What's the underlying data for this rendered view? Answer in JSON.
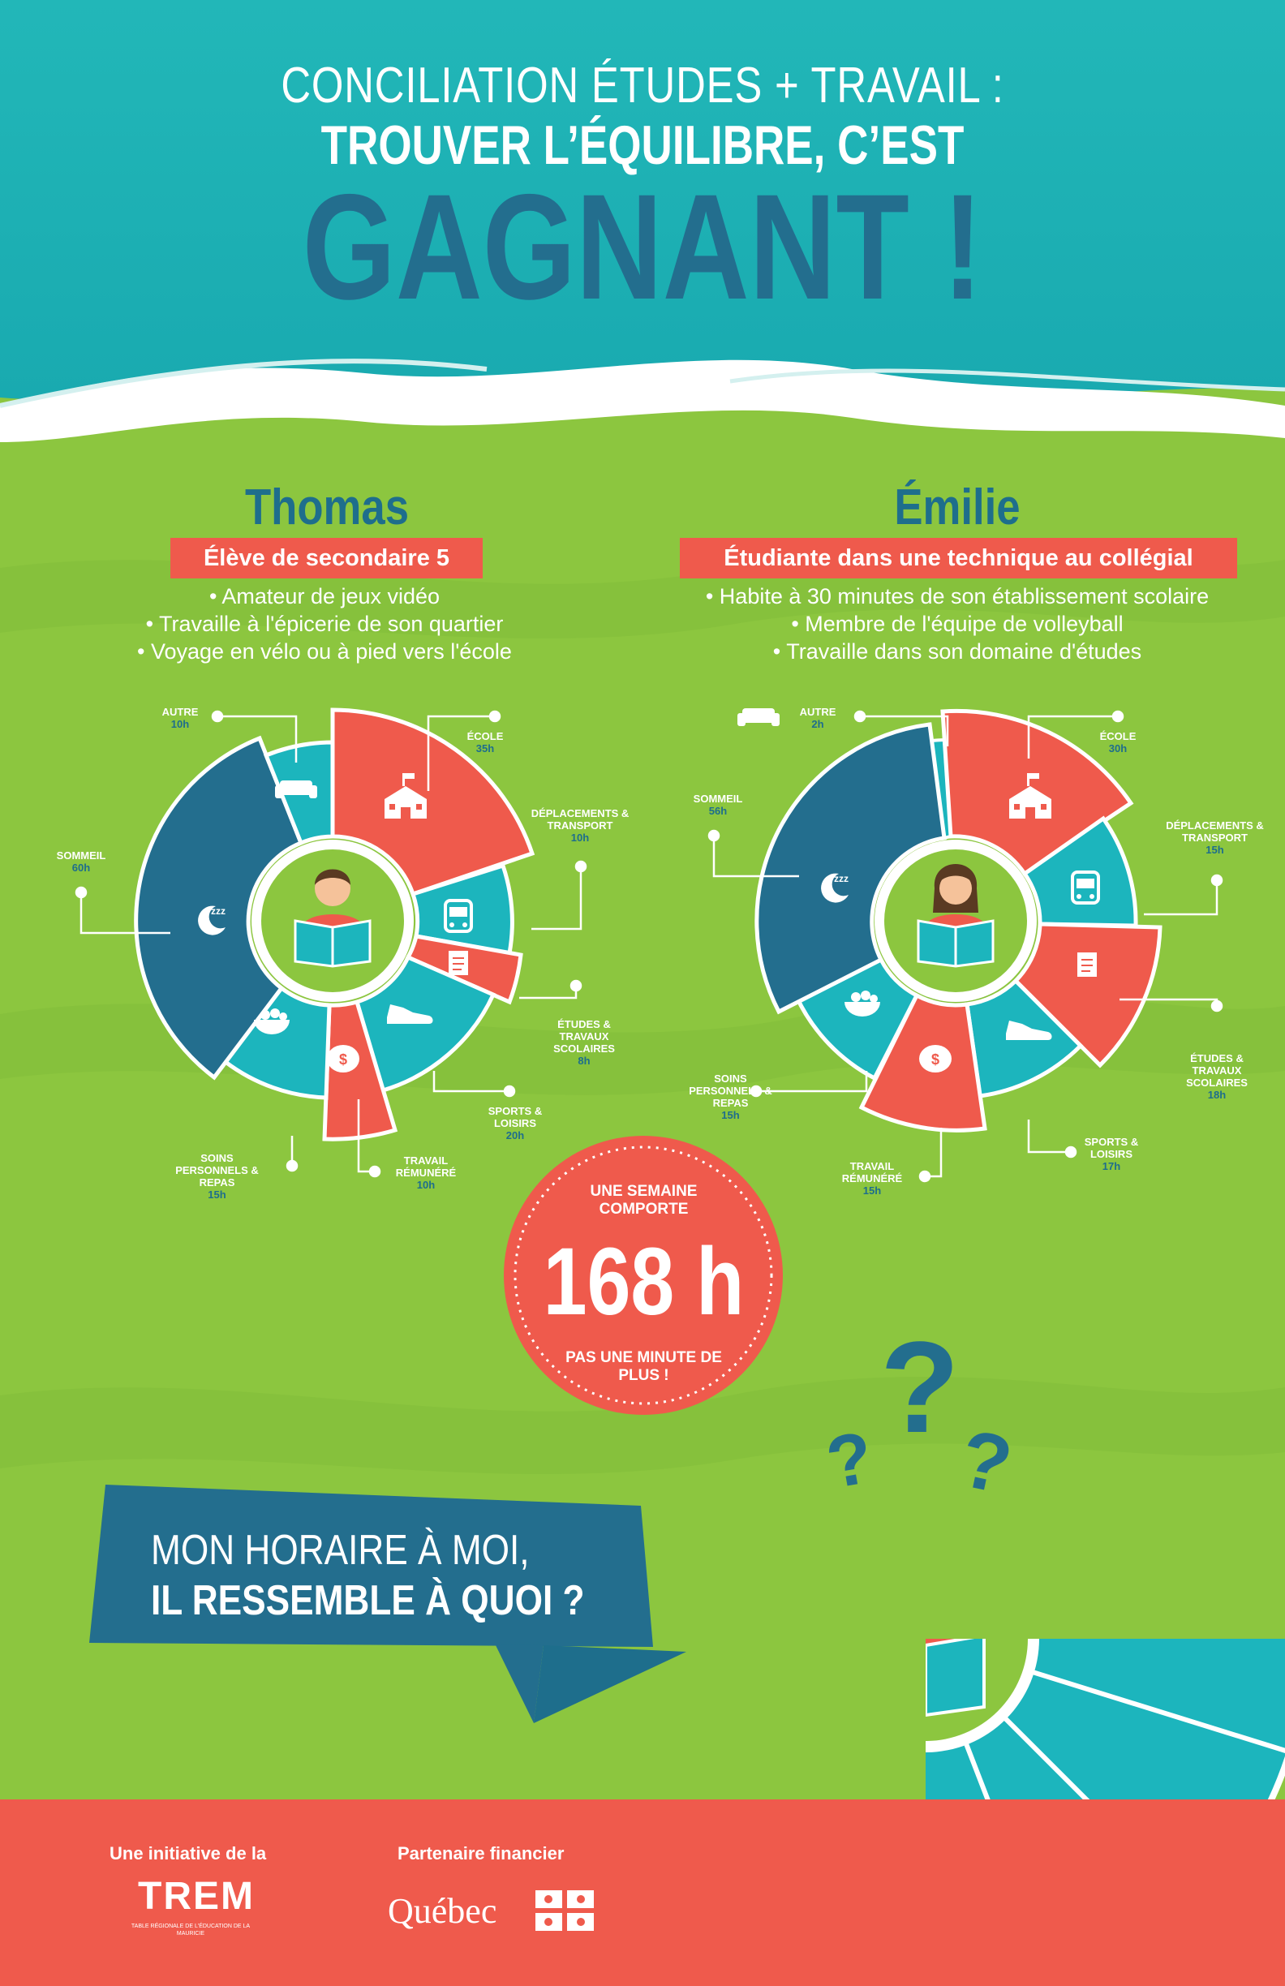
{
  "header": {
    "line1": "CONCILIATION ÉTUDES + TRAVAIL :",
    "line2": "TROUVER L’ÉQUILIBRE, C’EST",
    "line3": "GAGNANT !"
  },
  "colors": {
    "teal_top": "#1fb5b8",
    "green": "#8cc63f",
    "red": "#ef5a4c",
    "dark_teal": "#1e6e8c",
    "teal": "#1cb5bd",
    "footer": "#ef5a4c"
  },
  "thomas": {
    "name": "Thomas",
    "subtitle": "Élève de secondaire 5",
    "bullets": [
      "• Amateur de jeux vidéo",
      "• Travaille à l'épicerie de son quartier",
      "• Voyage en vélo ou à pied vers l'école"
    ],
    "segments": [
      {
        "label": "ÉCOLE",
        "value": "35h",
        "icon": "school-icon"
      },
      {
        "label": "DÉPLACEMENTS & TRANSPORT",
        "value": "10h",
        "icon": "bus-icon"
      },
      {
        "label": "ÉTUDES & TRAVAUX SCOLAIRES",
        "value": "8h",
        "icon": "document-icon"
      },
      {
        "label": "SPORTS & LOISIRS",
        "value": "20h",
        "icon": "shoe-icon"
      },
      {
        "label": "TRAVAIL RÉMUNÉRÉ",
        "value": "10h",
        "icon": "piggy-bank-icon"
      },
      {
        "label": "SOINS PERSONNELS & REPAS",
        "value": "15h",
        "icon": "bowl-icon"
      },
      {
        "label": "SOMMEIL",
        "value": "60h",
        "icon": "moon-icon"
      },
      {
        "label": "AUTRE",
        "value": "10h",
        "icon": "sofa-icon"
      }
    ]
  },
  "emilie": {
    "name": "Émilie",
    "subtitle": "Étudiante dans une technique au collégial",
    "bullets": [
      "• Habite à 30 minutes de son établissement scolaire",
      "• Membre de l'équipe de volleyball",
      "• Travaille dans son domaine d'études"
    ],
    "segments": [
      {
        "label": "ÉCOLE",
        "value": "30h",
        "icon": "school-icon"
      },
      {
        "label": "DÉPLACEMENTS & TRANSPORT",
        "value": "15h",
        "icon": "bus-icon"
      },
      {
        "label": "ÉTUDES & TRAVAUX SCOLAIRES",
        "value": "18h",
        "icon": "document-icon"
      },
      {
        "label": "SPORTS & LOISIRS",
        "value": "17h",
        "icon": "shoe-icon"
      },
      {
        "label": "TRAVAIL RÉMUNÉRÉ",
        "value": "15h",
        "icon": "piggy-bank-icon"
      },
      {
        "label": "SOINS PERSONNELS & REPAS",
        "value": "15h",
        "icon": "bowl-icon"
      },
      {
        "label": "SOMMEIL",
        "value": "56h",
        "icon": "moon-icon"
      },
      {
        "label": "AUTRE",
        "value": "2h",
        "icon": "sofa-icon"
      }
    ]
  },
  "week": {
    "top": "UNE SEMAINE COMPORTE",
    "hours": "168 h",
    "bottom": "PAS UNE MINUTE DE PLUS !"
  },
  "question": {
    "line1": "MON HORAIRE À MOI,",
    "line2": "IL RESSEMBLE À QUOI ?"
  },
  "footer": {
    "initiative_label": "Une initiative de la",
    "trem_logo": "TREM",
    "trem_sub": "TABLE RÉGIONALE DE L'ÉDUCATION DE LA MAURICIE",
    "partner_label": "Partenaire financier",
    "quebec_logo": "Québec"
  }
}
